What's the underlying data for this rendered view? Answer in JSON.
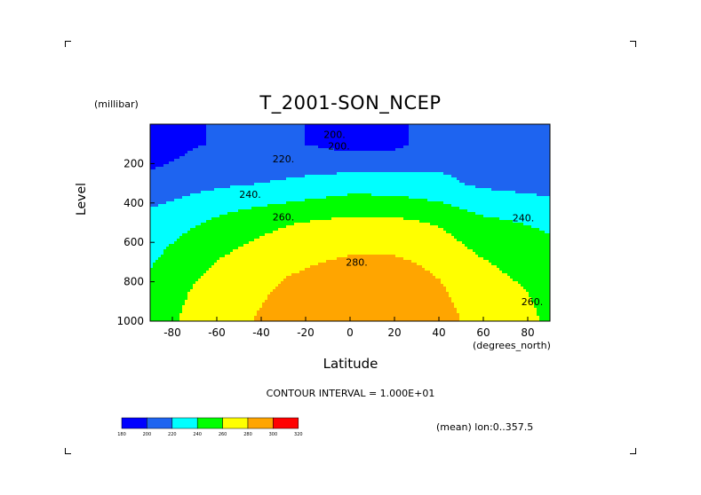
{
  "chart_data": {
    "type": "heatmap",
    "title": "T_2001-SON_NCEP",
    "xlabel": "Latitude",
    "x_units": "(degrees_north)",
    "ylabel": "Level",
    "y_units": "(millibar)",
    "xlim": [
      -90,
      90
    ],
    "ylim": [
      1000,
      0
    ],
    "x_ticks": [
      "-80",
      "-60",
      "-40",
      "-20",
      "0",
      "20",
      "40",
      "60",
      "80"
    ],
    "y_ticks": [
      "200",
      "400",
      "600",
      "800",
      "1000"
    ],
    "contour_interval_text": "CONTOUR INTERVAL = 1.000E+01",
    "mean_text": "(mean) lon:0..357.5",
    "contour_labels": [
      {
        "text": "200.",
        "x": -7,
        "y": 52
      },
      {
        "text": "200.",
        "x": -5,
        "y": 110
      },
      {
        "text": "220.",
        "x": -30,
        "y": 175
      },
      {
        "text": "240.",
        "x": -45,
        "y": 355
      },
      {
        "text": "240.",
        "x": 78,
        "y": 475
      },
      {
        "text": "260.",
        "x": -30,
        "y": 470
      },
      {
        "text": "260.",
        "x": 82,
        "y": 900
      },
      {
        "text": "280.",
        "x": 3,
        "y": 700
      }
    ],
    "colorbar": {
      "levels": [
        "180",
        "200",
        "220",
        "240",
        "260",
        "280",
        "300",
        "320"
      ],
      "colors": [
        "#0000ff",
        "#1e64f0",
        "#00ffff",
        "#00ff00",
        "#ffff00",
        "#ffa500",
        "#ff0000"
      ]
    },
    "values": [
      {
        "lat": -90,
        "profile": [
          [
            100,
            187
          ],
          [
            300,
            206
          ],
          [
            500,
            228
          ],
          [
            700,
            238
          ],
          [
            850,
            246
          ],
          [
            1000,
            250
          ]
        ]
      },
      {
        "lat": -70,
        "profile": [
          [
            100,
            198
          ],
          [
            300,
            214
          ],
          [
            500,
            238
          ],
          [
            700,
            255
          ],
          [
            850,
            262
          ],
          [
            1000,
            266
          ]
        ]
      },
      {
        "lat": -50,
        "profile": [
          [
            100,
            206
          ],
          [
            300,
            218
          ],
          [
            500,
            250
          ],
          [
            700,
            266
          ],
          [
            850,
            272
          ],
          [
            1000,
            276
          ]
        ]
      },
      {
        "lat": -30,
        "profile": [
          [
            100,
            203
          ],
          [
            300,
            222
          ],
          [
            500,
            258
          ],
          [
            700,
            276
          ],
          [
            850,
            283
          ],
          [
            1000,
            289
          ]
        ]
      },
      {
        "lat": 0,
        "profile": [
          [
            100,
            193
          ],
          [
            300,
            230
          ],
          [
            500,
            266
          ],
          [
            700,
            283
          ],
          [
            850,
            291
          ],
          [
            1000,
            297
          ]
        ]
      },
      {
        "lat": 20,
        "profile": [
          [
            100,
            195
          ],
          [
            300,
            229
          ],
          [
            500,
            265
          ],
          [
            700,
            283
          ],
          [
            850,
            291
          ],
          [
            1000,
            298
          ]
        ]
      },
      {
        "lat": 40,
        "profile": [
          [
            100,
            210
          ],
          [
            300,
            224
          ],
          [
            500,
            258
          ],
          [
            700,
            276
          ],
          [
            850,
            283
          ],
          [
            1000,
            288
          ]
        ]
      },
      {
        "lat": 60,
        "profile": [
          [
            100,
            218
          ],
          [
            300,
            216
          ],
          [
            500,
            245
          ],
          [
            700,
            261
          ],
          [
            850,
            268
          ],
          [
            1000,
            272
          ]
        ]
      },
      {
        "lat": 90,
        "profile": [
          [
            100,
            216
          ],
          [
            300,
            212
          ],
          [
            500,
            236
          ],
          [
            700,
            250
          ],
          [
            850,
            256
          ],
          [
            1000,
            258
          ]
        ]
      }
    ]
  }
}
